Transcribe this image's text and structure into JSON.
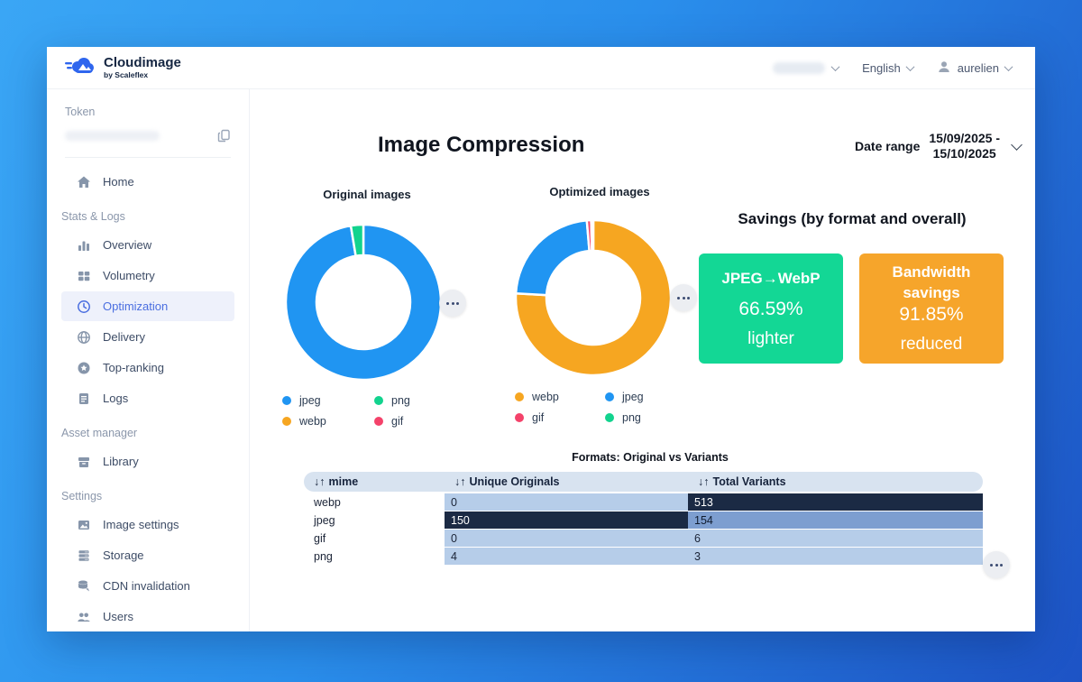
{
  "header": {
    "brand": "Cloudimage",
    "brand_sub": "by Scaleflex",
    "language": "English",
    "username": "aurelien"
  },
  "sidebar": {
    "token_label": "Token",
    "groups": [
      {
        "items": [
          {
            "label": "Home",
            "icon": "home-icon",
            "active": false
          }
        ]
      },
      {
        "label": "Stats & Logs",
        "items": [
          {
            "label": "Overview",
            "icon": "bar-chart-icon",
            "active": false
          },
          {
            "label": "Volumetry",
            "icon": "grid-icon",
            "active": false
          },
          {
            "label": "Optimization",
            "icon": "clock-icon",
            "active": true
          },
          {
            "label": "Delivery",
            "icon": "globe-icon",
            "active": false
          },
          {
            "label": "Top-ranking",
            "icon": "star-icon",
            "active": false
          },
          {
            "label": "Logs",
            "icon": "document-icon",
            "active": false
          }
        ]
      },
      {
        "label": "Asset manager",
        "items": [
          {
            "label": "Library",
            "icon": "archive-icon",
            "active": false
          }
        ]
      },
      {
        "label": "Settings",
        "items": [
          {
            "label": "Image settings",
            "icon": "image-icon",
            "active": false
          },
          {
            "label": "Storage",
            "icon": "server-icon",
            "active": false
          },
          {
            "label": "CDN invalidation",
            "icon": "database-icon",
            "active": false
          },
          {
            "label": "Users",
            "icon": "users-icon",
            "active": false
          }
        ]
      }
    ]
  },
  "main": {
    "title": "Image Compression",
    "date_range_label": "Date range",
    "date_line1": "15/09/2025 -",
    "date_line2": "15/10/2025"
  },
  "savings": {
    "title": "Savings (by format and overall)",
    "cards": [
      {
        "title": "JPEG→WebP",
        "value": "66.59%",
        "caption": "lighter",
        "bg": "#13d795"
      },
      {
        "title": "Bandwidth savings",
        "value": "91.85%",
        "caption": "reduced",
        "bg": "#f6a52b"
      }
    ]
  },
  "format_colors": {
    "jpeg": "#2095f2",
    "webp": "#f6a621",
    "png": "#12d38e",
    "gif": "#f4426a"
  },
  "chart_data": [
    {
      "type": "pie",
      "variant": "donut",
      "title": "Original images",
      "slices": [
        {
          "format": "jpeg",
          "value": 150
        },
        {
          "format": "png",
          "value": 4
        }
      ],
      "legend": [
        "jpeg",
        "png",
        "webp",
        "gif"
      ]
    },
    {
      "type": "pie",
      "variant": "donut",
      "title": "Optimized images",
      "slices": [
        {
          "format": "webp",
          "value": 513
        },
        {
          "format": "jpeg",
          "value": 154
        },
        {
          "format": "gif",
          "value": 6
        },
        {
          "format": "png",
          "value": 3
        }
      ],
      "legend": [
        "webp",
        "jpeg",
        "gif",
        "png"
      ]
    },
    {
      "type": "table",
      "title": "Formats: Original vs Variants",
      "sort_icon": "↓↑",
      "columns": [
        "mime",
        "Unique Originals",
        "Total Variants"
      ],
      "rows": [
        {
          "mime": "webp",
          "unique": "0",
          "variants": "513",
          "unique_bg": "#b6cde9",
          "unique_fg": "#1b2437",
          "variants_bg": "#1b2a44",
          "variants_fg": "#ffffff"
        },
        {
          "mime": "jpeg",
          "unique": "150",
          "variants": "154",
          "unique_bg": "#1b2a44",
          "unique_fg": "#ffffff",
          "variants_bg": "#7d9ed0",
          "variants_fg": "#101c30"
        },
        {
          "mime": "gif",
          "unique": "0",
          "variants": "6",
          "unique_bg": "#b6cde9",
          "unique_fg": "#1b2437",
          "variants_bg": "#b6cde9",
          "variants_fg": "#1b2437"
        },
        {
          "mime": "png",
          "unique": "4",
          "variants": "3",
          "unique_bg": "#b6cde9",
          "unique_fg": "#1b2437",
          "variants_bg": "#b6cde9",
          "variants_fg": "#1b2437"
        }
      ]
    }
  ]
}
